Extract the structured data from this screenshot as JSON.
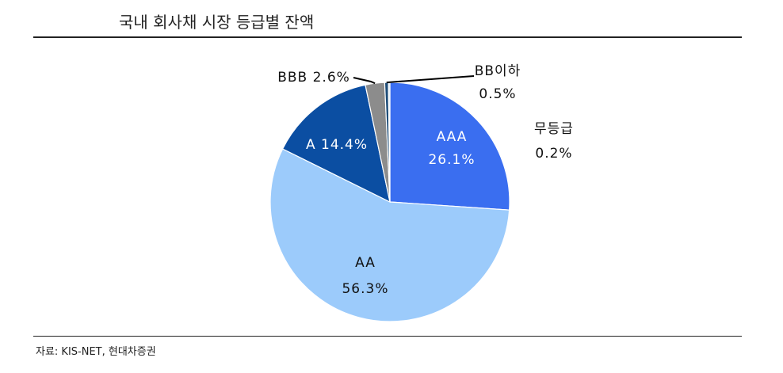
{
  "title": "국내 회사채 시장 등급별 잔액",
  "source": "자료: KIS-NET, 현대차증권",
  "colors": {
    "AAA": "#3a6ef0",
    "AA": "#9ccbfb",
    "A": "#0b4ea2",
    "BBB": "#8c8c8c",
    "BB_below": "#1f4e79",
    "unrated": "#cfe3f5"
  },
  "chart_data": {
    "type": "pie",
    "title": "국내 회사채 시장 등급별 잔액",
    "slices": [
      {
        "key": "AAA",
        "label": "AAA",
        "value_label": "26.1%",
        "value": 26.1
      },
      {
        "key": "AA",
        "label": "AA",
        "value_label": "56.3%",
        "value": 56.3
      },
      {
        "key": "A",
        "label": "A",
        "value_label": "14.4%",
        "value": 14.4
      },
      {
        "key": "BBB",
        "label": "BBB",
        "value_label": "2.6%",
        "value": 2.6
      },
      {
        "key": "BB_below",
        "label": "BB이하",
        "value_label": "0.5%",
        "value": 0.5
      },
      {
        "key": "unrated",
        "label": "무등급",
        "value_label": "0.2%",
        "value": 0.2
      }
    ]
  }
}
